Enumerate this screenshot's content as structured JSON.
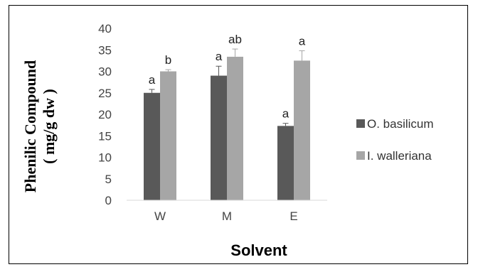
{
  "chart_data": {
    "type": "bar",
    "categories": [
      "W",
      "M",
      "E"
    ],
    "series": [
      {
        "name": "O. basilicum",
        "color": "#595959",
        "values": [
          25,
          29,
          17.3
        ],
        "errors": [
          0.8,
          2.2,
          0.6
        ],
        "letters": [
          "a",
          "a",
          "a"
        ]
      },
      {
        "name": "I. walleriana",
        "color": "#a6a6a6",
        "values": [
          30,
          33.4,
          32.5
        ],
        "errors": [
          0.4,
          1.8,
          2.3
        ],
        "letters": [
          "b",
          "ab",
          "a"
        ]
      }
    ],
    "ylim": [
      0,
      40
    ],
    "yticks": [
      0,
      5,
      10,
      15,
      20,
      25,
      30,
      35,
      40
    ],
    "xlabel": "Solvent",
    "ylabel_line1": "Phenilic Compound",
    "ylabel_line2": "( mg/g dw )",
    "legend_position": "right",
    "grid": false
  }
}
